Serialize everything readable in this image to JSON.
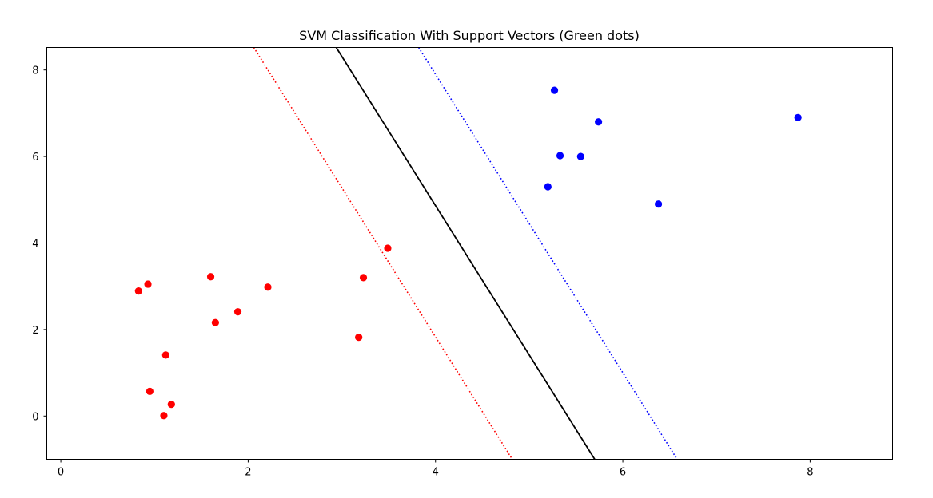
{
  "chart_data": {
    "type": "scatter",
    "title": "SVM Classification With Support Vectors (Green dots)",
    "xlabel": "",
    "ylabel": "",
    "xlim": [
      -0.15,
      8.88
    ],
    "ylim": [
      -1.0,
      8.52
    ],
    "xticks": [
      0,
      2,
      4,
      6,
      8
    ],
    "yticks": [
      0,
      2,
      4,
      6,
      8
    ],
    "grid": false,
    "series": [
      {
        "color": "#ff0000",
        "points": [
          [
            0.83,
            2.89
          ],
          [
            0.93,
            3.05
          ],
          [
            0.95,
            0.57
          ],
          [
            1.1,
            0.01
          ],
          [
            1.12,
            1.41
          ],
          [
            1.18,
            0.27
          ],
          [
            1.6,
            3.22
          ],
          [
            1.65,
            2.16
          ],
          [
            1.89,
            2.41
          ],
          [
            2.21,
            2.98
          ],
          [
            3.18,
            1.82
          ],
          [
            3.23,
            3.2
          ],
          [
            3.49,
            3.88
          ]
        ]
      },
      {
        "color": "#0000ff",
        "points": [
          [
            5.2,
            5.3
          ],
          [
            5.27,
            7.53
          ],
          [
            5.33,
            6.02
          ],
          [
            5.55,
            6.0
          ],
          [
            5.74,
            6.8
          ],
          [
            6.38,
            4.9
          ],
          [
            7.87,
            6.9
          ]
        ]
      }
    ],
    "lines": [
      {
        "role": "decision boundary",
        "color": "#000000",
        "style": "solid",
        "x": [
          2.94,
          5.7
        ],
        "y": [
          8.52,
          -1.0
        ]
      },
      {
        "role": "margin",
        "color": "#ff0000",
        "style": "dotted",
        "x": [
          2.06,
          4.82
        ],
        "y": [
          8.52,
          -1.0
        ]
      },
      {
        "role": "margin",
        "color": "#0000ff",
        "style": "dotted",
        "x": [
          3.82,
          6.58
        ],
        "y": [
          8.52,
          -1.0
        ]
      }
    ]
  }
}
